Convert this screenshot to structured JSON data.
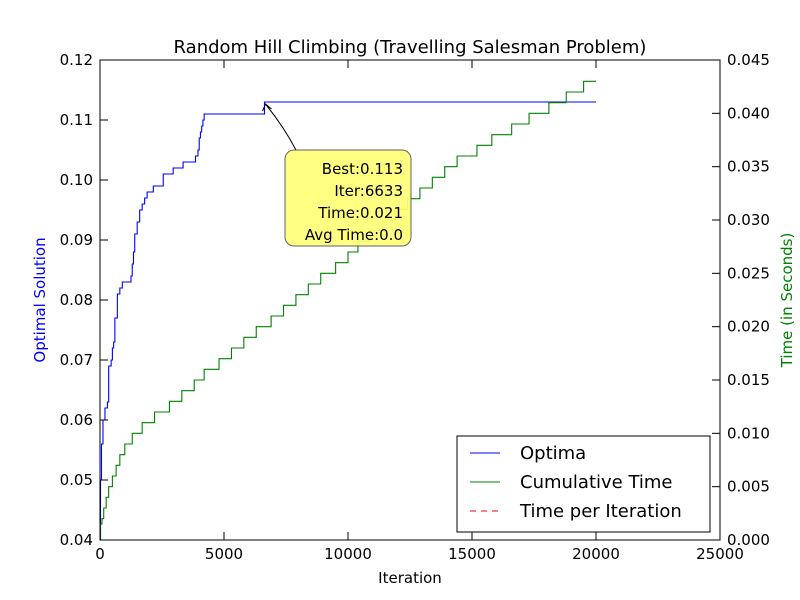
{
  "chart_data": {
    "type": "line",
    "title": "Random Hill Climbing (Travelling Salesman Problem)",
    "xlabel": "Iteration",
    "ylabel_left": "Optimal Solution",
    "ylabel_right": "Time (in Seconds)",
    "xlim": [
      0,
      25000
    ],
    "ylim_left": [
      0.04,
      0.12
    ],
    "ylim_right": [
      0.0,
      0.045
    ],
    "x_ticks": [
      "0",
      "5000",
      "10000",
      "15000",
      "20000",
      "25000"
    ],
    "y_left_ticks": [
      "0.04",
      "0.05",
      "0.06",
      "0.07",
      "0.08",
      "0.09",
      "0.10",
      "0.11",
      "0.12"
    ],
    "y_right_ticks": [
      "0.000",
      "0.005",
      "0.010",
      "0.015",
      "0.020",
      "0.025",
      "0.030",
      "0.035",
      "0.040",
      "0.045"
    ],
    "grid": false,
    "legend_position": "lower-right",
    "series": [
      {
        "name": "Optima",
        "axis": "left",
        "color": "#0000ff",
        "style": "solid-step",
        "points": [
          [
            0,
            0.04
          ],
          [
            20,
            0.05
          ],
          [
            60,
            0.056
          ],
          [
            120,
            0.06
          ],
          [
            200,
            0.062
          ],
          [
            300,
            0.063
          ],
          [
            350,
            0.069
          ],
          [
            450,
            0.07
          ],
          [
            500,
            0.072
          ],
          [
            550,
            0.073
          ],
          [
            600,
            0.077
          ],
          [
            700,
            0.081
          ],
          [
            800,
            0.082
          ],
          [
            900,
            0.083
          ],
          [
            1200,
            0.083
          ],
          [
            1250,
            0.084
          ],
          [
            1300,
            0.086
          ],
          [
            1350,
            0.088
          ],
          [
            1400,
            0.091
          ],
          [
            1500,
            0.093
          ],
          [
            1600,
            0.095
          ],
          [
            1700,
            0.096
          ],
          [
            1800,
            0.097
          ],
          [
            1900,
            0.098
          ],
          [
            2100,
            0.098
          ],
          [
            2150,
            0.099
          ],
          [
            2500,
            0.099
          ],
          [
            2550,
            0.101
          ],
          [
            2900,
            0.101
          ],
          [
            2950,
            0.102
          ],
          [
            3300,
            0.102
          ],
          [
            3350,
            0.103
          ],
          [
            3800,
            0.103
          ],
          [
            3850,
            0.104
          ],
          [
            3950,
            0.105
          ],
          [
            4000,
            0.107
          ],
          [
            4050,
            0.108
          ],
          [
            4100,
            0.109
          ],
          [
            4150,
            0.11
          ],
          [
            4200,
            0.111
          ],
          [
            6600,
            0.111
          ],
          [
            6633,
            0.113
          ],
          [
            20000,
            0.113
          ]
        ]
      },
      {
        "name": "Cumulative Time",
        "axis": "right",
        "color": "#008000",
        "style": "solid-step",
        "points": [
          [
            0,
            0.0
          ],
          [
            20,
            0.0015
          ],
          [
            80,
            0.002
          ],
          [
            150,
            0.003
          ],
          [
            250,
            0.004
          ],
          [
            350,
            0.005
          ],
          [
            500,
            0.006
          ],
          [
            650,
            0.007
          ],
          [
            800,
            0.008
          ],
          [
            1000,
            0.009
          ],
          [
            1300,
            0.01
          ],
          [
            1700,
            0.011
          ],
          [
            2200,
            0.012
          ],
          [
            2800,
            0.013
          ],
          [
            3300,
            0.014
          ],
          [
            3800,
            0.015
          ],
          [
            4200,
            0.016
          ],
          [
            4800,
            0.017
          ],
          [
            5300,
            0.018
          ],
          [
            5800,
            0.019
          ],
          [
            6300,
            0.02
          ],
          [
            6900,
            0.021
          ],
          [
            7400,
            0.022
          ],
          [
            7900,
            0.023
          ],
          [
            8400,
            0.024
          ],
          [
            8900,
            0.025
          ],
          [
            9500,
            0.026
          ],
          [
            10000,
            0.027
          ],
          [
            10400,
            0.028
          ],
          [
            10900,
            0.029
          ],
          [
            11400,
            0.03
          ],
          [
            11900,
            0.031
          ],
          [
            12400,
            0.032
          ],
          [
            12900,
            0.033
          ],
          [
            13400,
            0.034
          ],
          [
            13900,
            0.035
          ],
          [
            14400,
            0.036
          ],
          [
            15200,
            0.037
          ],
          [
            15800,
            0.038
          ],
          [
            16600,
            0.039
          ],
          [
            17300,
            0.04
          ],
          [
            18100,
            0.041
          ],
          [
            18800,
            0.042
          ],
          [
            19500,
            0.043
          ],
          [
            20000,
            0.043
          ]
        ]
      },
      {
        "name": "Time per Iteration",
        "axis": "right",
        "color": "#ff0000",
        "style": "dashed",
        "points": [
          [
            0,
            0.0
          ],
          [
            20000,
            0.0
          ]
        ]
      }
    ],
    "annotation": {
      "lines": [
        "Best:0.113",
        "Iter:6633",
        "Time:0.021",
        "Avg Time:0.0"
      ],
      "target": [
        6633,
        0.113
      ],
      "box_color": "#ffff77"
    }
  }
}
